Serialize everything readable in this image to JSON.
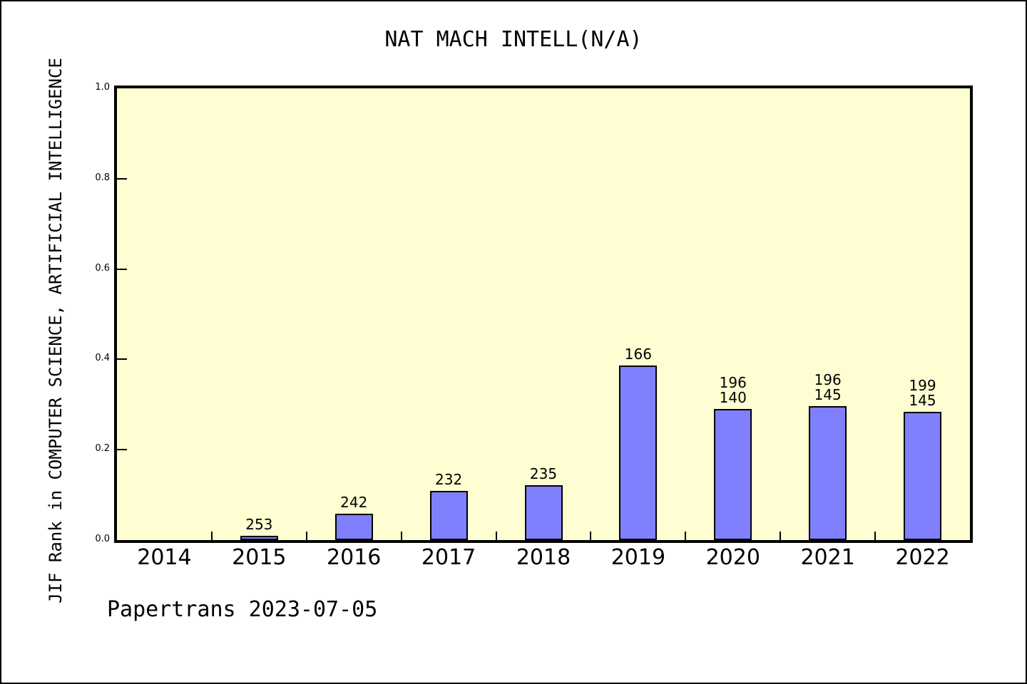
{
  "chart_data": {
    "type": "bar",
    "title": "NAT MACH INTELL(N/A)",
    "ylabel": "JIF Rank in COMPUTER SCIENCE, ARTIFICIAL INTELLIGENCE",
    "footer": "Papertrans 2023-07-05",
    "categories": [
      "2014",
      "2015",
      "2016",
      "2017",
      "2018",
      "2019",
      "2020",
      "2021",
      "2022"
    ],
    "values": [
      0,
      0.009,
      0.058,
      0.109,
      0.121,
      0.386,
      0.29,
      0.296,
      0.284
    ],
    "bar_labels": [
      [],
      [
        "253"
      ],
      [
        "242"
      ],
      [
        "232"
      ],
      [
        "235"
      ],
      [
        "166"
      ],
      [
        "196",
        "140"
      ],
      [
        "196",
        "145"
      ],
      [
        "199",
        "145"
      ]
    ],
    "ylim": [
      0,
      1
    ],
    "yticks": [
      "0.0",
      "0.2",
      "0.4",
      "0.6",
      "0.8",
      "1.0"
    ],
    "grid": false,
    "legend_position": "none",
    "colors": {
      "bar_fill": "#8080FF",
      "bar_border": "#000000",
      "plot_bg": "#FEFED2",
      "page_bg": "#FFFFFF",
      "text": "#000000"
    }
  }
}
